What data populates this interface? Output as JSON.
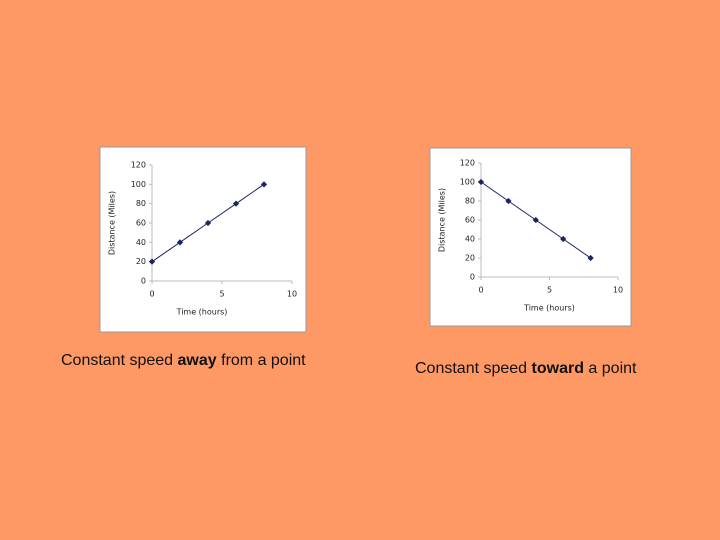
{
  "chart_data": [
    {
      "type": "line",
      "x_label": "Time (hours)",
      "y_label": "Distance (Miles)",
      "x": [
        0,
        2,
        4,
        6,
        8
      ],
      "series": [
        {
          "color": "#1c2466",
          "values": [
            20,
            40,
            60,
            80,
            100
          ]
        }
      ],
      "xlim": [
        0,
        10
      ],
      "xticks": [
        0,
        5,
        10
      ],
      "ylim": [
        0,
        120
      ],
      "yticks": [
        0,
        20,
        40,
        60,
        80,
        100,
        120
      ]
    },
    {
      "type": "line",
      "x_label": "Time (hours)",
      "y_label": "Distance (Miles)",
      "x": [
        0,
        2,
        4,
        6,
        8
      ],
      "series": [
        {
          "color": "#1c2466",
          "values": [
            100,
            80,
            60,
            40,
            20
          ]
        }
      ],
      "xlim": [
        0,
        10
      ],
      "xticks": [
        0,
        5,
        10
      ],
      "ylim": [
        0,
        120
      ],
      "yticks": [
        0,
        20,
        40,
        60,
        80,
        100,
        120
      ]
    }
  ],
  "captions": [
    {
      "before": "Constant speed ",
      "emphasis": "away",
      "after": " from a point"
    },
    {
      "before": "Constant speed ",
      "emphasis": "toward",
      "after": " a point"
    }
  ]
}
